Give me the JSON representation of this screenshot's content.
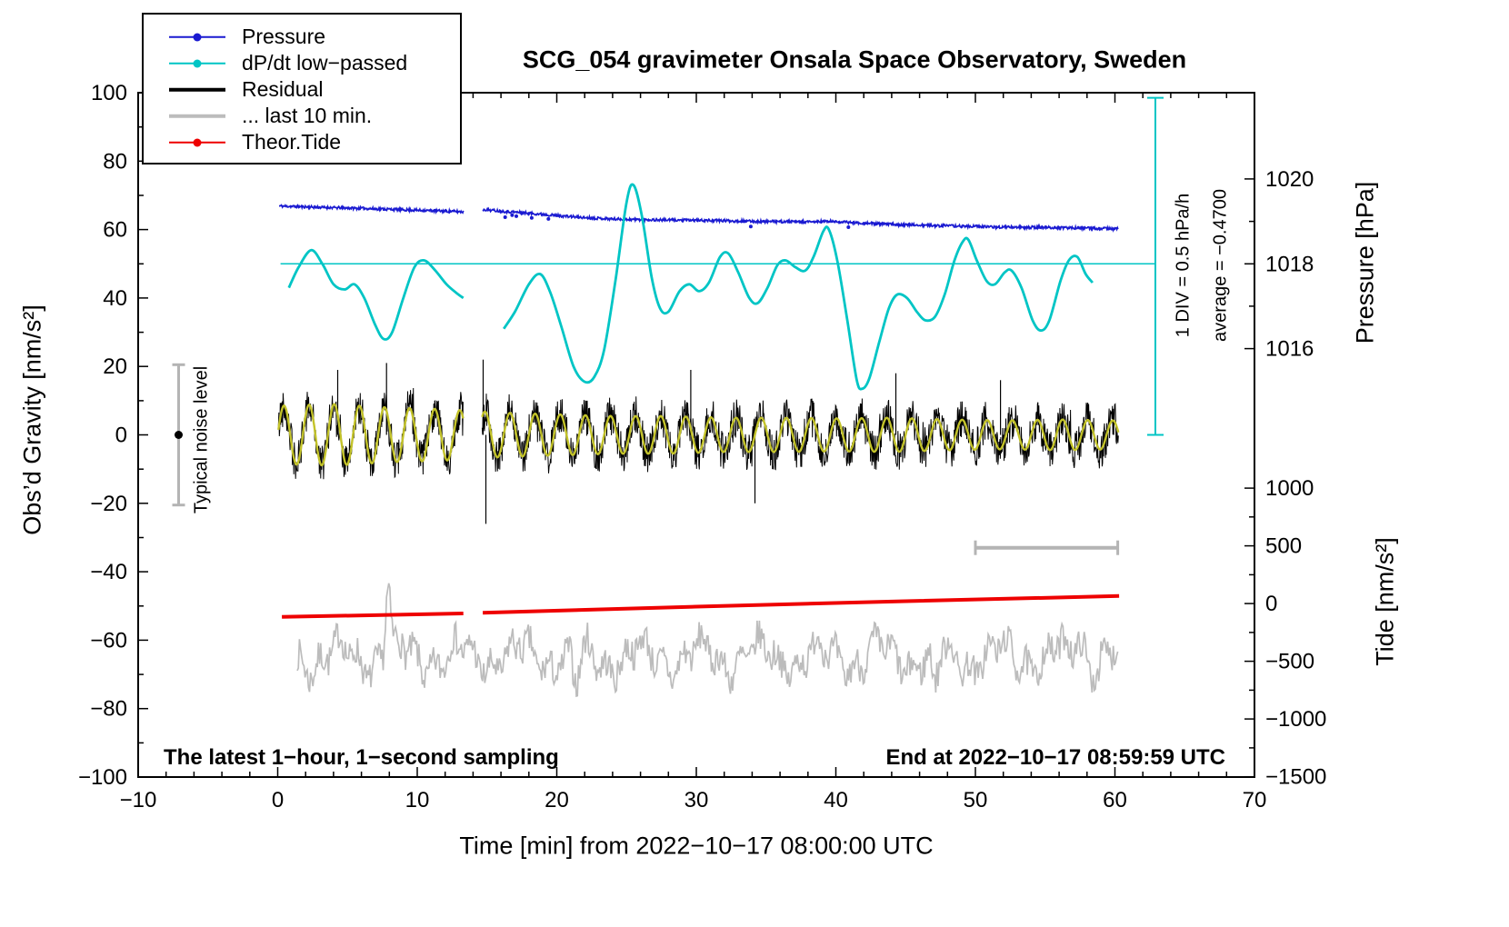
{
  "legend": {
    "items": [
      {
        "label": "Pressure",
        "color": "#1a1ad1",
        "line": "thin",
        "dot": true
      },
      {
        "label": "dP/dt low−passed",
        "color": "#00c5c5",
        "line": "thin",
        "dot": true
      },
      {
        "label": "Residual",
        "color": "#000000",
        "line": "thick",
        "dot": false
      },
      {
        "label": "... last 10 min.",
        "color": "#bcbcbc",
        "line": "thick",
        "dot": false
      },
      {
        "label": "Theor.Tide",
        "color": "#ee0000",
        "line": "thin",
        "dot": true
      }
    ]
  },
  "annotations": {
    "sampling_note": "The latest 1−hour, 1−second sampling",
    "end_time": "End at 2022−10−17 08:59:59 UTC",
    "div_scale": "1 DIV = 0.5 hPa/h",
    "average": "average = −0.4700",
    "noise_level": "Typical noise level"
  },
  "chart_data": {
    "type": "line",
    "title": "SCG_054 gravimeter Onsala Space Observatory, Sweden",
    "xlabel": "Time [min] from 2022−10−17 08:00:00 UTC",
    "ylabel": "Obs’d Gravity [nm/s²]",
    "grid": false,
    "axes": {
      "x": {
        "min": -10,
        "max": 70,
        "ticks": [
          -10,
          0,
          10,
          20,
          30,
          40,
          50,
          60,
          70
        ],
        "minor_step": 2
      },
      "y_left": {
        "min": -100,
        "max": 100,
        "ticks": [
          -100,
          -80,
          -60,
          -40,
          -20,
          0,
          20,
          40,
          60,
          80,
          100
        ],
        "minor_step": 10
      }
    },
    "right_axis_pressure": {
      "label": "Pressure [hPa]",
      "ticks": [
        1016,
        1018,
        1020
      ],
      "minor": [
        1017,
        1019
      ],
      "gravity_at_1018": 50,
      "gravity_per_hpa": 12.4
    },
    "right_axis_tide": {
      "label": "Tide [nm/s²]",
      "ticks": [
        1000,
        500,
        0,
        -500,
        -1000,
        -1500
      ],
      "minor": [
        750,
        250,
        -250,
        -750,
        -1250
      ],
      "gravity_at_0": -49.3,
      "gravity_per_unit": 0.03374
    },
    "series": {
      "pressure": {
        "name": "Pressure",
        "color": "#1a1ad1",
        "noise_amp": 0.38,
        "seed": 11,
        "segments": [
          [
            [
              0.1,
              66.9
            ],
            [
              3,
              66.5
            ],
            [
              6,
              66.2
            ],
            [
              9,
              65.8
            ],
            [
              12,
              65.4
            ],
            [
              13.3,
              65.2
            ]
          ],
          [
            [
              14.7,
              65.9
            ],
            [
              16,
              65.4
            ],
            [
              18,
              64.8
            ],
            [
              20,
              64.1
            ],
            [
              22,
              63.5
            ],
            [
              24,
              63.1
            ],
            [
              26,
              62.9
            ],
            [
              28,
              62.8
            ],
            [
              30,
              62.7
            ],
            [
              32,
              62.6
            ],
            [
              34,
              62.4
            ],
            [
              36,
              62.3
            ],
            [
              38,
              62.2
            ],
            [
              39.5,
              62.4
            ],
            [
              41,
              62.1
            ],
            [
              43,
              61.7
            ],
            [
              45,
              61.4
            ],
            [
              47,
              61.2
            ],
            [
              49,
              61.0
            ],
            [
              51,
              60.8
            ],
            [
              53,
              60.7
            ],
            [
              55,
              60.6
            ],
            [
              57,
              60.5
            ],
            [
              58.5,
              60.35
            ],
            [
              60.25,
              60.2
            ]
          ]
        ],
        "outliers": [
          [
            16.3,
            63.6
          ],
          [
            16.8,
            64.2
          ],
          [
            17.1,
            63.9
          ],
          [
            18.2,
            63.4
          ],
          [
            19.4,
            63.1
          ],
          [
            33.9,
            60.9
          ],
          [
            40.9,
            60.7
          ]
        ]
      },
      "dpdt": {
        "name": "dP/dt low-passed",
        "color": "#00c5c5",
        "segments": [
          [
            [
              0.8,
              43
            ],
            [
              1.5,
              49
            ],
            [
              2.4,
              54
            ],
            [
              3.2,
              50
            ],
            [
              4.0,
              44
            ],
            [
              4.8,
              42.5
            ],
            [
              5.5,
              44
            ],
            [
              6.2,
              40
            ],
            [
              7.0,
              32
            ],
            [
              7.6,
              28
            ],
            [
              8.2,
              30
            ],
            [
              9.0,
              40
            ],
            [
              9.8,
              49
            ],
            [
              10.5,
              51
            ],
            [
              11.3,
              48
            ],
            [
              12.1,
              44
            ],
            [
              12.8,
              41.5
            ],
            [
              13.3,
              40
            ]
          ],
          [
            [
              16.2,
              31
            ],
            [
              17,
              36
            ],
            [
              18,
              44
            ],
            [
              18.8,
              47
            ],
            [
              19.5,
              42
            ],
            [
              20.3,
              32
            ],
            [
              21.2,
              20
            ],
            [
              22,
              15.5
            ],
            [
              22.7,
              17
            ],
            [
              23.4,
              25
            ],
            [
              24.2,
              45
            ],
            [
              25,
              68
            ],
            [
              25.5,
              73
            ],
            [
              26.1,
              64
            ],
            [
              26.8,
              46
            ],
            [
              27.4,
              37
            ],
            [
              28,
              36
            ],
            [
              28.8,
              42
            ],
            [
              29.5,
              44
            ],
            [
              30.2,
              42
            ],
            [
              30.9,
              44.5
            ],
            [
              31.7,
              52
            ],
            [
              32.3,
              53
            ],
            [
              33,
              47.5
            ],
            [
              33.8,
              40
            ],
            [
              34.4,
              38.5
            ],
            [
              35.1,
              43
            ],
            [
              35.8,
              49.5
            ],
            [
              36.4,
              51
            ],
            [
              37.1,
              49
            ],
            [
              37.8,
              48
            ],
            [
              38.4,
              52
            ],
            [
              39.1,
              59.5
            ],
            [
              39.5,
              60
            ],
            [
              40.1,
              51
            ],
            [
              40.8,
              34
            ],
            [
              41.5,
              16
            ],
            [
              41.9,
              13.5
            ],
            [
              42.4,
              16.5
            ],
            [
              43.1,
              27
            ],
            [
              43.8,
              37
            ],
            [
              44.4,
              41
            ],
            [
              45.1,
              40
            ],
            [
              45.8,
              36
            ],
            [
              46.4,
              33.5
            ],
            [
              47.1,
              34.5
            ],
            [
              47.8,
              41
            ],
            [
              48.5,
              51
            ],
            [
              49.1,
              56.5
            ],
            [
              49.5,
              57
            ],
            [
              50.1,
              51
            ],
            [
              50.8,
              45
            ],
            [
              51.4,
              44
            ],
            [
              52.1,
              47.5
            ],
            [
              52.6,
              48
            ],
            [
              53.3,
              43
            ],
            [
              54.1,
              33.5
            ],
            [
              54.7,
              30.5
            ],
            [
              55.3,
              33.5
            ],
            [
              56.1,
              45
            ],
            [
              56.7,
              51
            ],
            [
              57.3,
              52
            ],
            [
              57.9,
              47
            ],
            [
              58.4,
              44.5
            ]
          ]
        ]
      },
      "residual": {
        "name": "Residual",
        "color": "#000000",
        "seed": 42,
        "period": 1.8,
        "noise_amp": 5.8,
        "segments": [
          [
            0.05,
            13.3
          ],
          [
            14.65,
            60.25
          ]
        ],
        "amplitude_keypoints": [
          [
            0,
            8.5
          ],
          [
            4,
            9
          ],
          [
            8,
            8
          ],
          [
            12,
            7.5
          ],
          [
            16,
            6.5
          ],
          [
            20,
            6
          ],
          [
            24,
            5.5
          ],
          [
            28,
            5.5
          ],
          [
            32,
            5
          ],
          [
            36,
            5
          ],
          [
            40,
            4.8
          ],
          [
            44,
            5
          ],
          [
            48,
            4.5
          ],
          [
            52,
            4.2
          ],
          [
            56,
            4.5
          ],
          [
            60,
            4.2
          ]
        ],
        "spikes": [
          [
            4.3,
            19
          ],
          [
            7.8,
            21
          ],
          [
            14.72,
            22
          ],
          [
            14.92,
            -26
          ],
          [
            29.6,
            19
          ],
          [
            34.2,
            -20
          ],
          [
            44.3,
            18
          ],
          [
            51.8,
            16
          ]
        ]
      },
      "residual_lowpass": {
        "name": "Residual low-passed",
        "color": "#c3c32a"
      },
      "last10": {
        "name": "... last 10 min.",
        "color": "#bcbcbc",
        "seed": 7,
        "center": -65,
        "noise_amp": 4.6,
        "range": [
          1.4,
          60.2
        ],
        "bumps": [
          [
            7.9,
            21,
            0.06
          ],
          [
            21.4,
            -9,
            0.15
          ],
          [
            47.1,
            -11,
            0.1
          ],
          [
            57.5,
            6,
            0.2
          ]
        ]
      },
      "theor_tide": {
        "name": "Theor.Tide",
        "color": "#ee0000",
        "segments": [
          [
            [
              0.3,
              -53.2
            ],
            [
              13.3,
              -52.2
            ]
          ],
          [
            [
              14.7,
              -52.0
            ],
            [
              30,
              -50.2
            ],
            [
              45,
              -48.6
            ],
            [
              60.3,
              -47.1
            ]
          ]
        ]
      }
    },
    "extras": {
      "ref_line": {
        "y": 50,
        "x": [
          0.2,
          62.9
        ],
        "color": "#00c5c5"
      },
      "ruler": {
        "x": 62.9,
        "y": [
          0,
          98.5
        ],
        "color": "#00c5c5"
      },
      "scale_bar": {
        "y": -33,
        "x": [
          50,
          60.2
        ],
        "color": "#b4b4b4"
      },
      "noise_bar": {
        "x": -7.1,
        "y": [
          -20.5,
          20.5
        ],
        "dot_y": 0,
        "color": "#b4b4b4"
      }
    }
  }
}
